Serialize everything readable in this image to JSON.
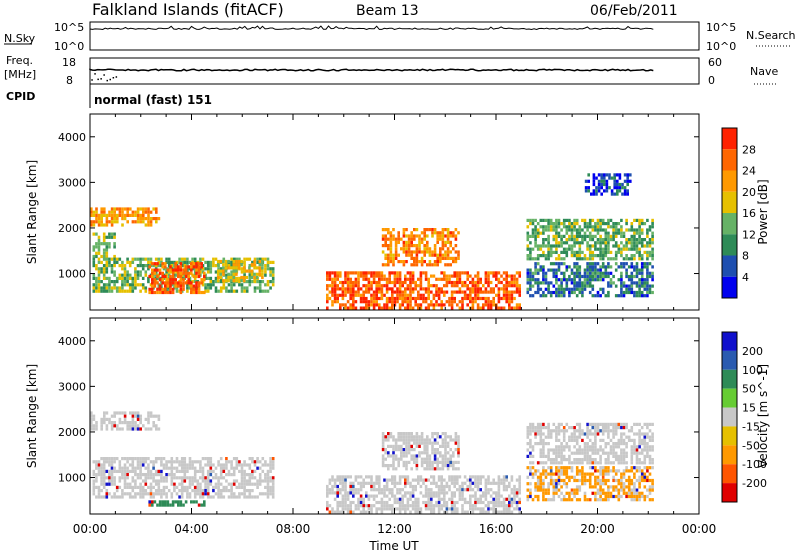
{
  "header": {
    "title": "Falkland Islands (fitACF)",
    "beam": "Beam 13",
    "date": "06/Feb/2011"
  },
  "strip_panels": {
    "nsky": {
      "label": "N.Sky",
      "tick_top": "10^5",
      "tick_bottom": "10^0",
      "right_tick_top": "10^5",
      "right_tick_bottom": "10^0",
      "right_label": "N.Search",
      "right_label_style": "dotted"
    },
    "freq": {
      "label_line1": "Freq.",
      "label_line2": "[MHz]",
      "tick_top": "18",
      "tick_bottom": "8",
      "right_tick_top": "60",
      "right_tick_bottom": "0",
      "right_label": "Nave",
      "right_label_style": "dotted"
    },
    "cpid": {
      "label": "CPID",
      "value": "normal (fast) 151"
    }
  },
  "colors": {
    "power_scale": [
      "#0000ee",
      "#1e4fb0",
      "#2e8b57",
      "#66b266",
      "#e6c000",
      "#ff9900",
      "#ff6600",
      "#ff2200"
    ],
    "velocity_scale": [
      "#e00000",
      "#ff5500",
      "#ff9900",
      "#e6c000",
      "#c8c8c8",
      "#66cc33",
      "#2e8b57",
      "#2a5bb0",
      "#1010cc"
    ],
    "ground_scatter": "#c8c8c8"
  },
  "chart_data": [
    {
      "type": "heatmap",
      "title": "Power",
      "xlabel": "",
      "ylabel": "Slant Range [km]",
      "xlim": [
        "00:00",
        "24:00"
      ],
      "ylim": [
        200,
        4500
      ],
      "x_ticks": [
        "00:00",
        "04:00",
        "08:00",
        "12:00",
        "16:00",
        "20:00",
        "00:00"
      ],
      "y_ticks": [
        1000,
        2000,
        3000,
        4000
      ],
      "colorbar": {
        "label": "Power [dB]",
        "ticks": [
          4,
          8,
          12,
          16,
          20,
          24,
          28
        ]
      },
      "regions": [
        {
          "t": [
            0.0,
            2.7
          ],
          "r": [
            2050,
            2450
          ],
          "v": 22
        },
        {
          "t": [
            0.1,
            1.0
          ],
          "r": [
            1350,
            1900
          ],
          "v": 14
        },
        {
          "t": [
            0.1,
            7.2
          ],
          "r": [
            600,
            1350
          ],
          "v": 14
        },
        {
          "t": [
            2.3,
            4.5
          ],
          "r": [
            600,
            1250
          ],
          "v": 27
        },
        {
          "t": [
            5.0,
            6.8
          ],
          "r": [
            850,
            1300
          ],
          "v": 18
        },
        {
          "t": [
            9.3,
            16.9
          ],
          "r": [
            250,
            1050
          ],
          "v": 27
        },
        {
          "t": [
            11.5,
            14.5
          ],
          "r": [
            1200,
            2000
          ],
          "v": 24
        },
        {
          "t": [
            17.2,
            22.2
          ],
          "r": [
            1300,
            2200
          ],
          "v": 13
        },
        {
          "t": [
            17.2,
            22.2
          ],
          "r": [
            500,
            1250
          ],
          "v": 8
        },
        {
          "t": [
            19.5,
            21.3
          ],
          "r": [
            2750,
            3200
          ],
          "v": 5
        }
      ]
    },
    {
      "type": "heatmap",
      "title": "Velocity",
      "xlabel": "Time UT",
      "ylabel": "Slant Range [km]",
      "xlim": [
        "00:00",
        "24:00"
      ],
      "ylim": [
        200,
        4500
      ],
      "x_ticks": [
        "00:00",
        "04:00",
        "08:00",
        "12:00",
        "16:00",
        "20:00",
        "00:00"
      ],
      "y_ticks": [
        1000,
        2000,
        3000,
        4000
      ],
      "colorbar": {
        "label": "Velocity [m s^-1]",
        "ticks": [
          200,
          100,
          50,
          15,
          -15,
          -50,
          -100,
          -200
        ]
      },
      "regions": [
        {
          "t": [
            0.0,
            2.7
          ],
          "r": [
            2050,
            2450
          ],
          "v": 0
        },
        {
          "t": [
            0.1,
            7.2
          ],
          "r": [
            600,
            1450
          ],
          "v": 0
        },
        {
          "t": [
            2.3,
            4.5
          ],
          "r": [
            400,
            500
          ],
          "v": 30
        },
        {
          "t": [
            9.3,
            16.9
          ],
          "r": [
            250,
            1050
          ],
          "v": 0
        },
        {
          "t": [
            11.5,
            14.5
          ],
          "r": [
            1200,
            2000
          ],
          "v": 0
        },
        {
          "t": [
            17.2,
            22.2
          ],
          "r": [
            1300,
            2200
          ],
          "v": 0
        },
        {
          "t": [
            17.2,
            22.2
          ],
          "r": [
            500,
            1250
          ],
          "v": -20
        }
      ]
    }
  ]
}
